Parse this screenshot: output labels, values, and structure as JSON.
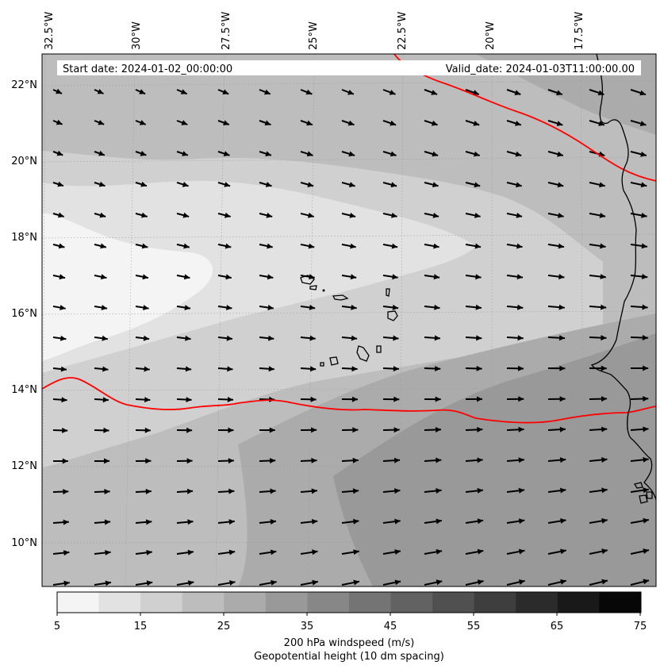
{
  "map": {
    "start_date": "Start date: 2024-01-02_00:00:00",
    "valid_date": "Valid_date: 2024-01-03T11:00:00.00",
    "lon_labels": [
      "32.5°W",
      "30°W",
      "27.5°W",
      "25°W",
      "22.5°W",
      "20°W",
      "17.5°W"
    ],
    "lat_labels": [
      "22°N",
      "20°N",
      "18°N",
      "16°N",
      "14°N",
      "12°N",
      "10°N"
    ],
    "lon_range": [
      -33.0,
      -15.5
    ],
    "lat_range": [
      8.8,
      22.8
    ],
    "contour_color": "#ff0000",
    "coast_color": "#000000"
  },
  "colorbar": {
    "ticks": [
      "5",
      "15",
      "25",
      "35",
      "45",
      "55",
      "65",
      "75"
    ],
    "label": "200 hPa windspeed (m/s)",
    "sublabel": "Geopotential height (10 dm spacing)",
    "sublabel_color": "#ff0000",
    "range": [
      5,
      75
    ],
    "step": 5,
    "colors": [
      "#f4f4f4",
      "#e2e2e2",
      "#d0d0d0",
      "#bdbdbd",
      "#ababab",
      "#999999",
      "#878787",
      "#747474",
      "#626262",
      "#505050",
      "#3e3e3e",
      "#2b2b2b",
      "#191919",
      "#070707"
    ]
  }
}
